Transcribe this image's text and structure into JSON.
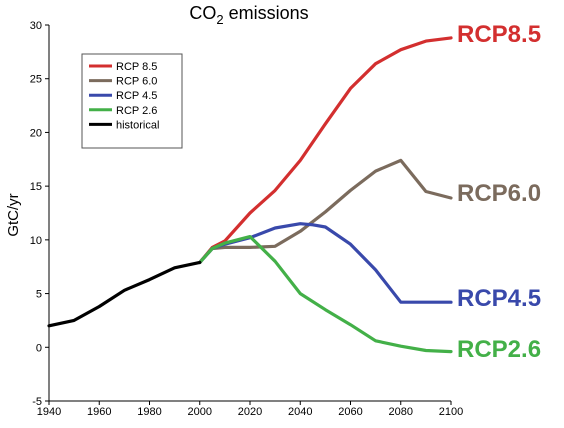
{
  "chart_data": {
    "type": "line",
    "title": "CO2 emissions",
    "ylabel": "GtC/yr",
    "xlabel": "",
    "xlim": [
      1940,
      2100
    ],
    "ylim": [
      -5,
      30
    ],
    "xticks": [
      1940,
      1960,
      1980,
      2000,
      2020,
      2040,
      2060,
      2080,
      2100
    ],
    "xtick_labels": [
      "1940",
      "1960",
      "1980",
      "2000",
      "2020",
      "2040",
      "2060",
      "2080",
      "2100"
    ],
    "yticks": [
      -5,
      0,
      5,
      10,
      15,
      20,
      25,
      30
    ],
    "ytick_labels": [
      "-5",
      "0",
      "5",
      "10",
      "15",
      "20",
      "25",
      "30"
    ],
    "grid": false,
    "legend_position": "top-left",
    "series": [
      {
        "name": "RCP 8.5",
        "end_label": "RCP8.5",
        "color": "#d32f2f",
        "x": [
          2000,
          2005,
          2010,
          2020,
          2030,
          2040,
          2050,
          2060,
          2070,
          2080,
          2090,
          2100
        ],
        "y": [
          7.9,
          9.3,
          9.9,
          12.5,
          14.6,
          17.4,
          20.8,
          24.1,
          26.4,
          27.7,
          28.5,
          28.8
        ]
      },
      {
        "name": "RCP 6.0",
        "end_label": "RCP6.0",
        "color": "#7b6b5d",
        "x": [
          2000,
          2005,
          2010,
          2020,
          2030,
          2040,
          2050,
          2060,
          2070,
          2080,
          2090,
          2100
        ],
        "y": [
          7.9,
          9.2,
          9.3,
          9.3,
          9.4,
          10.8,
          12.6,
          14.6,
          16.4,
          17.4,
          14.5,
          13.9
        ]
      },
      {
        "name": "RCP 4.5",
        "end_label": "RCP4.5",
        "color": "#3949ab",
        "x": [
          2000,
          2005,
          2010,
          2020,
          2030,
          2040,
          2045,
          2050,
          2060,
          2070,
          2080,
          2090,
          2100
        ],
        "y": [
          7.9,
          9.2,
          9.6,
          10.2,
          11.1,
          11.5,
          11.4,
          11.2,
          9.6,
          7.2,
          4.2,
          4.2,
          4.2
        ]
      },
      {
        "name": "RCP 2.6",
        "end_label": "RCP2.6",
        "color": "#43b048",
        "x": [
          2000,
          2005,
          2010,
          2020,
          2030,
          2040,
          2050,
          2060,
          2070,
          2080,
          2090,
          2100
        ],
        "y": [
          7.9,
          9.2,
          9.7,
          10.3,
          8.0,
          5.0,
          3.5,
          2.1,
          0.6,
          0.1,
          -0.3,
          -0.4
        ]
      },
      {
        "name": "historical",
        "color": "#000000",
        "x": [
          1940,
          1950,
          1960,
          1970,
          1980,
          1990,
          2000
        ],
        "y": [
          2.0,
          2.5,
          3.8,
          5.3,
          6.3,
          7.4,
          7.9
        ]
      }
    ]
  }
}
